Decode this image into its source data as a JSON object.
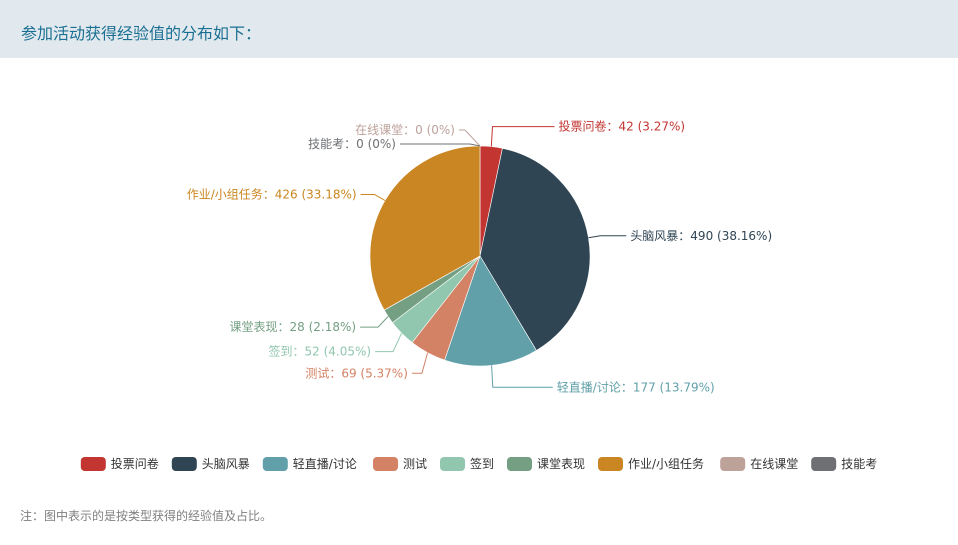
{
  "header": {
    "title": "参加活动获得经验值的分布如下："
  },
  "note": "注：图中表示的是按类型获得的经验值及占比。",
  "chart_data": {
    "type": "pie",
    "title": "",
    "legend_position": "bottom",
    "slices": [
      {
        "name": "投票问卷",
        "value": 42,
        "percent": "3.27%",
        "label": "投票问卷：42 (3.27%)",
        "color": "#c23531"
      },
      {
        "name": "头脑风暴",
        "value": 490,
        "percent": "38.16%",
        "label": "头脑风暴：490 (38.16%)",
        "color": "#2f4554"
      },
      {
        "name": "轻直播/讨论",
        "value": 177,
        "percent": "13.79%",
        "label": "轻直播/讨论：177 (13.79%)",
        "color": "#61a0a8"
      },
      {
        "name": "测试",
        "value": 69,
        "percent": "5.37%",
        "label": "测试：69 (5.37%)",
        "color": "#d48265"
      },
      {
        "name": "签到",
        "value": 52,
        "percent": "4.05%",
        "label": "签到：52 (4.05%)",
        "color": "#91c7ae"
      },
      {
        "name": "课堂表现",
        "value": 28,
        "percent": "2.18%",
        "label": "课堂表现：28 (2.18%)",
        "color": "#749f83"
      },
      {
        "name": "作业/小组任务",
        "value": 426,
        "percent": "33.18%",
        "label": "作业/小组任务：426 (33.18%)",
        "color": "#ca8622"
      },
      {
        "name": "在线课堂",
        "value": 0,
        "percent": "0%",
        "label": "在线课堂：0 (0%)",
        "color": "#bda29a"
      },
      {
        "name": "技能考",
        "value": 0,
        "percent": "0%",
        "label": "技能考：0 (0%)",
        "color": "#6e7074"
      }
    ]
  }
}
